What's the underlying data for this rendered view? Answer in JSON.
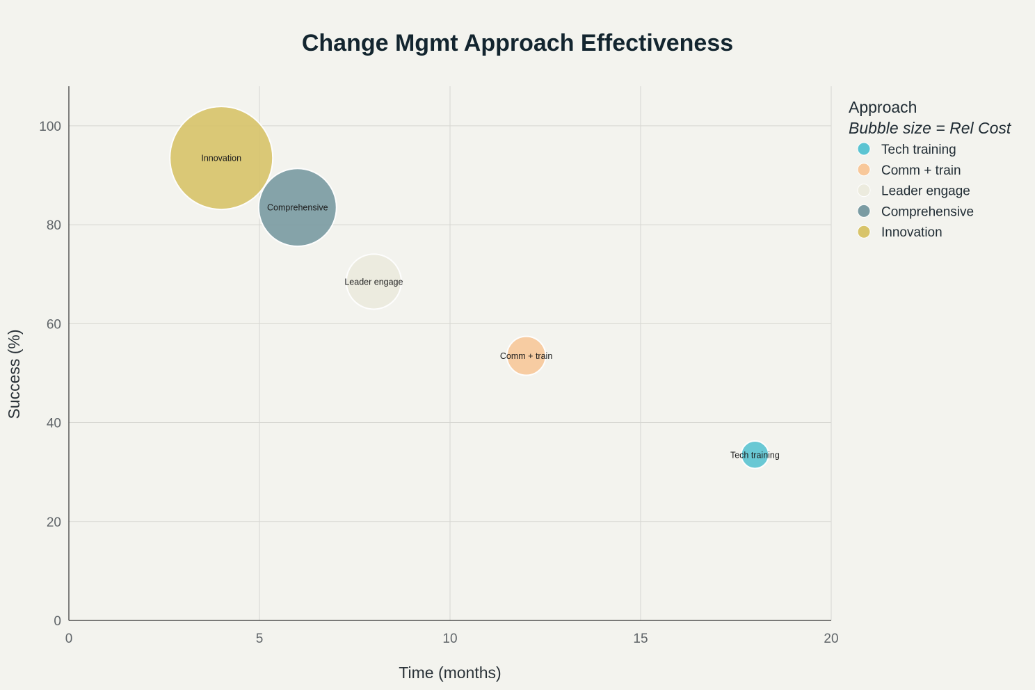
{
  "chart_data": {
    "type": "scatter",
    "title": "Change Mgmt Approach Effectiveness",
    "xlabel": "Time (months)",
    "ylabel": "Success (%)",
    "xlim": [
      0,
      20
    ],
    "ylim": [
      0,
      108
    ],
    "x_ticks": [
      0,
      5,
      10,
      15,
      20
    ],
    "y_ticks": [
      0,
      20,
      40,
      60,
      80,
      100
    ],
    "grid": true,
    "legend": {
      "title": "Approach",
      "subtitle": "Bubble size = Rel Cost",
      "placement": "right"
    },
    "series": [
      {
        "name": "Tech training",
        "x": 18,
        "y": 33.5,
        "size": 1,
        "color": "#5bc4d2"
      },
      {
        "name": "Comm + train",
        "x": 12,
        "y": 53.5,
        "size": 2,
        "color": "#f8c89a"
      },
      {
        "name": "Leader engage",
        "x": 8,
        "y": 68.5,
        "size": 4,
        "color": "#ecebde"
      },
      {
        "name": "Comprehensive",
        "x": 6,
        "y": 83.5,
        "size": 8,
        "color": "#7a9ba2"
      },
      {
        "name": "Innovation",
        "x": 4,
        "y": 93.5,
        "size": 14,
        "color": "#d8c46a"
      }
    ]
  }
}
